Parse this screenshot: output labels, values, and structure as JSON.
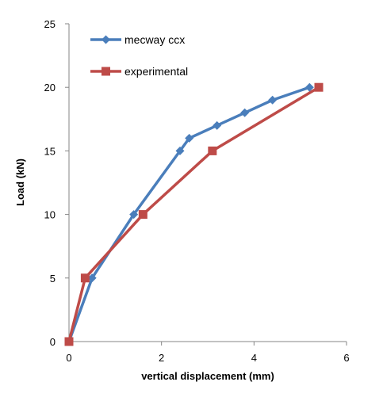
{
  "chart_data": {
    "type": "line",
    "xlabel": "vertical displacement (mm)",
    "ylabel": "Load (kN)",
    "xlim": [
      0,
      6
    ],
    "ylim": [
      0,
      25
    ],
    "xticks": [
      0,
      2,
      4,
      6
    ],
    "yticks": [
      0,
      5,
      10,
      15,
      20,
      25
    ],
    "grid": false,
    "legend_position": "top-left",
    "series": [
      {
        "name": "mecway ccx",
        "color": "#4a7ebb",
        "marker": "diamond",
        "x": [
          0,
          0.5,
          1.4,
          2.4,
          2.6,
          3.2,
          3.8,
          4.4,
          5.2
        ],
        "y": [
          0,
          5,
          10,
          15,
          16,
          17,
          18,
          19,
          20
        ]
      },
      {
        "name": "experimental",
        "color": "#be4b48",
        "marker": "square",
        "x": [
          0,
          0.35,
          1.6,
          3.1,
          5.4
        ],
        "y": [
          0,
          5,
          10,
          15,
          20
        ]
      }
    ]
  }
}
